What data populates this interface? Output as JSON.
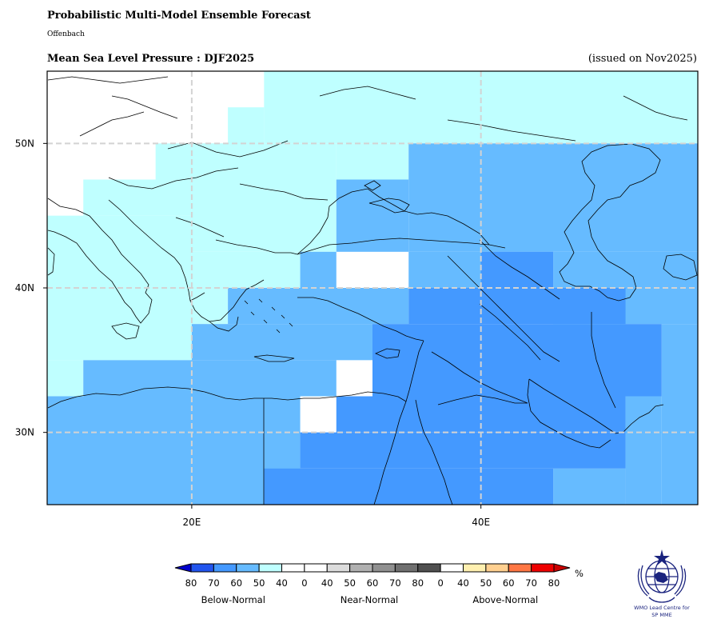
{
  "header": {
    "title": "Probabilistic Multi-Model Ensemble Forecast",
    "centre": "Offenbach",
    "subtitle": "Mean Sea Level Pressure : DJF2025",
    "issued": "(issued on Nov2025)"
  },
  "map": {
    "lon_range": [
      10,
      55
    ],
    "lat_range": [
      25,
      55
    ],
    "x_ticks": [
      {
        "lon": 20,
        "label": "20E"
      },
      {
        "lon": 40,
        "label": "40E"
      }
    ],
    "y_ticks": [
      {
        "lat": 50,
        "label": "50N"
      },
      {
        "lat": 40,
        "label": "40N"
      },
      {
        "lat": 30,
        "label": "30N"
      }
    ],
    "grid": true,
    "land_color": "#ffffff",
    "coastline_color": "#000000",
    "grid_color": "#d3d3d3"
  },
  "forecast_categories": {
    "cell_size_deg": 2.5,
    "colors": {
      "BN40": "#bfffff",
      "BN50": "#66bbff",
      "BN60": "#4499ff"
    },
    "legend_key": [
      "BN40 = Below-Normal 40-50%",
      "BN50 = Below-Normal 50-60%",
      "BN60 = Below-Normal 60-70%"
    ],
    "regions": [
      {
        "category": "BN40",
        "lon": [
          17.5,
          22.5
        ],
        "lat": [
          47.5,
          50
        ]
      },
      {
        "category": "BN40",
        "lon": [
          22.5,
          25
        ],
        "lat": [
          47.5,
          52.5
        ]
      },
      {
        "category": "BN40",
        "lon": [
          25,
          55
        ],
        "lat": [
          50,
          55
        ]
      },
      {
        "category": "BN40",
        "lon": [
          12.5,
          20
        ],
        "lat": [
          45,
          47.5
        ]
      },
      {
        "category": "BN40",
        "lon": [
          10,
          20
        ],
        "lat": [
          35,
          45
        ]
      },
      {
        "category": "BN40",
        "lon": [
          20,
          30
        ],
        "lat": [
          42.5,
          50
        ]
      },
      {
        "category": "BN40",
        "lon": [
          30,
          35
        ],
        "lat": [
          47.5,
          50
        ]
      },
      {
        "category": "BN40",
        "lon": [
          20,
          27.5
        ],
        "lat": [
          40,
          42.5
        ]
      },
      {
        "category": "BN40",
        "lon": [
          20,
          22.5
        ],
        "lat": [
          37.5,
          40
        ]
      },
      {
        "category": "BN40",
        "lon": [
          10,
          12.5
        ],
        "lat": [
          32.5,
          35
        ]
      },
      {
        "category": "BN50",
        "lon": [
          35,
          55
        ],
        "lat": [
          42.5,
          50
        ]
      },
      {
        "category": "BN50",
        "lon": [
          30,
          35
        ],
        "lat": [
          42.5,
          47.5
        ]
      },
      {
        "category": "BN50",
        "lon": [
          27.5,
          30
        ],
        "lat": [
          40,
          42.5
        ]
      },
      {
        "category": "BN50",
        "lon": [
          22.5,
          35
        ],
        "lat": [
          37.5,
          40
        ]
      },
      {
        "category": "BN50",
        "lon": [
          20,
          32.5
        ],
        "lat": [
          35,
          37.5
        ]
      },
      {
        "category": "BN50",
        "lon": [
          12.5,
          30
        ],
        "lat": [
          32.5,
          35
        ]
      },
      {
        "category": "BN50",
        "lon": [
          10,
          27.5
        ],
        "lat": [
          25,
          32.5
        ]
      },
      {
        "category": "BN50",
        "lon": [
          35,
          45
        ],
        "lat": [
          40,
          42.5
        ]
      },
      {
        "category": "BN50",
        "lon": [
          45,
          55
        ],
        "lat": [
          37.5,
          42.5
        ]
      },
      {
        "category": "BN50",
        "lon": [
          52.5,
          55
        ],
        "lat": [
          25,
          37.5
        ]
      },
      {
        "category": "BN50",
        "lon": [
          50,
          52.5
        ],
        "lat": [
          25,
          32.5
        ]
      },
      {
        "category": "BN50",
        "lon": [
          45,
          50
        ],
        "lat": [
          25,
          27.5
        ]
      },
      {
        "category": "BN60",
        "lon": [
          40,
          45
        ],
        "lat": [
          40,
          42.5
        ]
      },
      {
        "category": "BN60",
        "lon": [
          35,
          50
        ],
        "lat": [
          37.5,
          40
        ]
      },
      {
        "category": "BN60",
        "lon": [
          32.5,
          52.5
        ],
        "lat": [
          32.5,
          37.5
        ]
      },
      {
        "category": "BN60",
        "lon": [
          30,
          50
        ],
        "lat": [
          30,
          32.5
        ]
      },
      {
        "category": "BN60",
        "lon": [
          27.5,
          50
        ],
        "lat": [
          27.5,
          30
        ]
      },
      {
        "category": "BN60",
        "lon": [
          25,
          45
        ],
        "lat": [
          25,
          27.5
        ]
      }
    ]
  },
  "colorbar": {
    "unit": "%",
    "segments": [
      {
        "label": "80",
        "color": "#2255ee"
      },
      {
        "label": "70",
        "color": "#4499ff"
      },
      {
        "label": "60",
        "color": "#66bbff"
      },
      {
        "label": "50",
        "color": "#bfffff"
      },
      {
        "label": "40",
        "color": "#ffffff"
      },
      {
        "label": "0",
        "color": "#ffffff"
      },
      {
        "label": "40",
        "color": "#dcdcdc"
      },
      {
        "label": "50",
        "color": "#b0b0b0"
      },
      {
        "label": "60",
        "color": "#909090"
      },
      {
        "label": "70",
        "color": "#707070"
      },
      {
        "label": "80",
        "color": "#505050"
      },
      {
        "label": "0",
        "color": "#ffffff"
      },
      {
        "label": "40",
        "color": "#fff0b0"
      },
      {
        "label": "50",
        "color": "#ffd090"
      },
      {
        "label": "60",
        "color": "#ff7744"
      },
      {
        "label": "70",
        "color": "#ee0000"
      },
      {
        "label": "80",
        "color": ""
      }
    ],
    "low_extend_color": "#0000cc",
    "high_extend_color": "#cc0000",
    "groups": [
      {
        "label": "Below-Normal"
      },
      {
        "label": "Near-Normal"
      },
      {
        "label": "Above-Normal"
      }
    ]
  },
  "logo": {
    "text_line1": "WMO Lead Centre for",
    "text_line2": "SP MME",
    "color": "#1a237e"
  }
}
